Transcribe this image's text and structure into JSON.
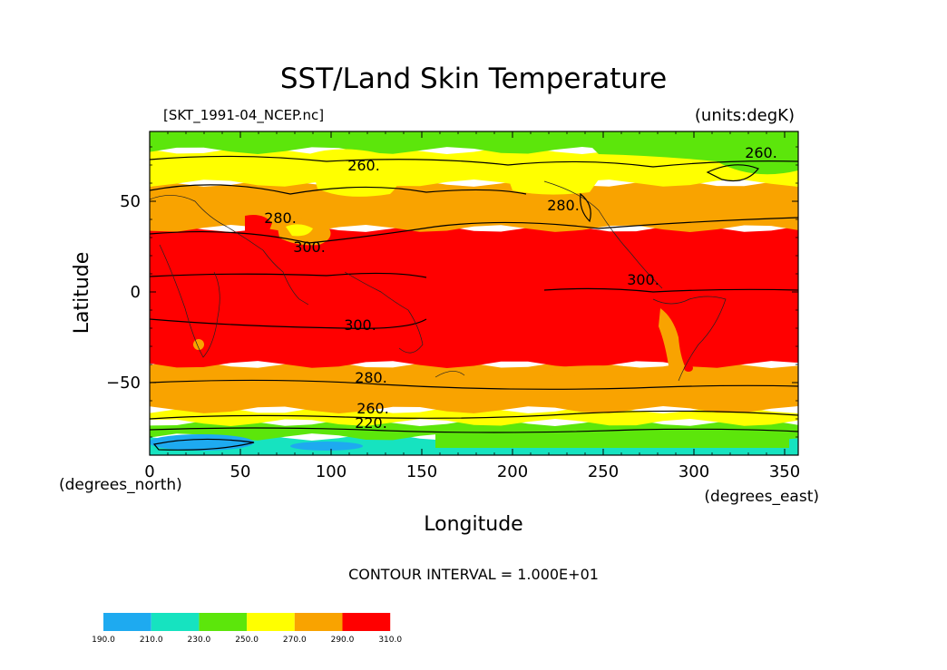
{
  "chart_data": {
    "type": "heatmap",
    "title": "SST/Land Skin Temperature",
    "file_label": "[SKT_1991-04_NCEP.nc]",
    "units_label": "(units:degK)",
    "xlabel": "Longitude",
    "ylabel": "Latitude",
    "x_units": "(degrees_east)",
    "y_units": "(degrees_north)",
    "xlim": [
      0,
      357.5
    ],
    "ylim": [
      -90,
      88.5
    ],
    "x_ticks": [
      0,
      50,
      100,
      150,
      200,
      250,
      300,
      350
    ],
    "y_ticks": [
      -50,
      0,
      50
    ],
    "contour_interval_text": "CONTOUR INTERVAL = 1.000E+01",
    "contour_labels": [
      {
        "text": "260.",
        "lon": 118,
        "lat": 67
      },
      {
        "text": "260.",
        "lon": 337,
        "lat": 74
      },
      {
        "text": "280.",
        "lon": 228,
        "lat": 45
      },
      {
        "text": "280.",
        "lon": 72,
        "lat": 38
      },
      {
        "text": "300.",
        "lon": 88,
        "lat": 22
      },
      {
        "text": "300.",
        "lon": 272,
        "lat": 4
      },
      {
        "text": "300.",
        "lon": 116,
        "lat": -21
      },
      {
        "text": "280.",
        "lon": 122,
        "lat": -50
      },
      {
        "text": "260.",
        "lon": 123,
        "lat": -67
      },
      {
        "text": "220.",
        "lon": 122,
        "lat": -75
      }
    ],
    "colorbar": {
      "levels": [
        "190.0",
        "210.0",
        "230.0",
        "250.0",
        "270.0",
        "290.0",
        "310.0"
      ],
      "colors": [
        "#1eaaf0",
        "#16e3c0",
        "#5ce60b",
        "#ffff00",
        "#f9a300",
        "#ff0000"
      ]
    },
    "bands": [
      {
        "from_lat": -90,
        "to_lat": -80,
        "value": "210-230",
        "color": "#16e3c0"
      },
      {
        "from_lat": -80,
        "to_lat": -72,
        "value": "230-250",
        "color": "#5ce60b"
      },
      {
        "from_lat": -72,
        "to_lat": -65,
        "value": "250-270",
        "color": "#ffff00"
      },
      {
        "from_lat": -65,
        "to_lat": -40,
        "value": "270-290",
        "color": "#f9a300"
      },
      {
        "from_lat": -40,
        "to_lat": 35,
        "value": "290-310",
        "color": "#ff0000"
      },
      {
        "from_lat": 35,
        "to_lat": 60,
        "value": "270-290",
        "color": "#f9a300"
      },
      {
        "from_lat": 60,
        "to_lat": 78,
        "value": "250-270",
        "color": "#ffff00"
      },
      {
        "from_lat": 78,
        "to_lat": 88.5,
        "value": "230-250",
        "color": "#5ce60b"
      }
    ]
  }
}
